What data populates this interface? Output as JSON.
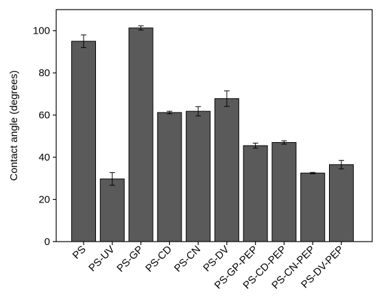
{
  "chart_data": {
    "type": "bar",
    "y_label": "Contact angle (degrees)",
    "categories": [
      "PS",
      "PS-UV",
      "PS-GP",
      "PS-CD",
      "PS-CN",
      "PS-DV",
      "PS-GP-PEP",
      "PS-CD-PEP",
      "PS-CN-PEP",
      "PS-DV-PEP"
    ],
    "values": [
      95,
      29.7,
      101.3,
      61.2,
      61.8,
      67.8,
      45.5,
      47,
      32.5,
      36.5
    ],
    "errors": [
      3,
      3,
      1,
      0.6,
      2.2,
      3.7,
      1.2,
      0.8,
      0.3,
      2
    ],
    "color": "#5a5a5a",
    "ylim": [
      0,
      110
    ],
    "yticks": [
      0,
      20,
      40,
      60,
      80,
      100
    ],
    "grid": false
  }
}
